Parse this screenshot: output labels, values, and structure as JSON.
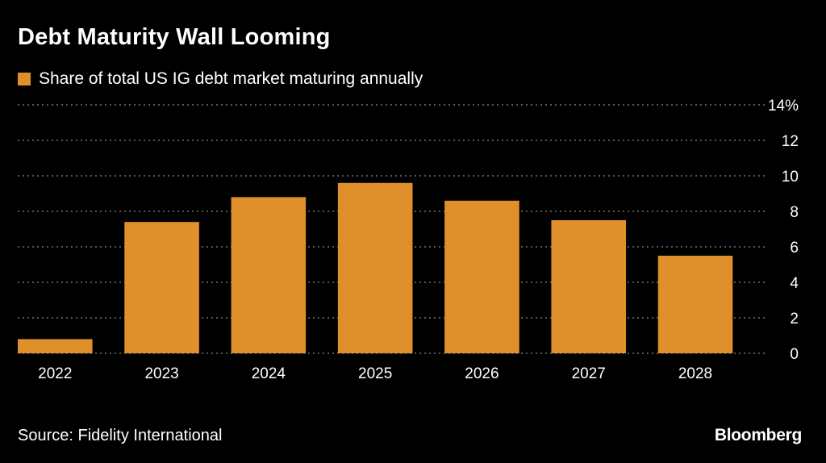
{
  "chart_data": {
    "type": "bar",
    "title": "Debt Maturity Wall Looming",
    "legend": [
      "Share of total US IG debt market maturing annually"
    ],
    "categories": [
      "2022",
      "2023",
      "2024",
      "2025",
      "2026",
      "2027",
      "2028"
    ],
    "values": [
      0.8,
      7.4,
      8.8,
      9.6,
      8.6,
      7.5,
      5.5
    ],
    "ylim": [
      0,
      14
    ],
    "yticks": [
      "0",
      "2",
      "4",
      "6",
      "8",
      "10",
      "12",
      "14%"
    ],
    "xlabel": "",
    "ylabel": "",
    "grid": true,
    "legend_position": "top-left",
    "y_axis_side": "right",
    "bar_color": "#e0902a",
    "grid_color": "#8a8a8a",
    "text_color": "#ffffff",
    "background": "#000000"
  },
  "footer": {
    "source": "Source: Fidelity International",
    "brand": "Bloomberg"
  }
}
